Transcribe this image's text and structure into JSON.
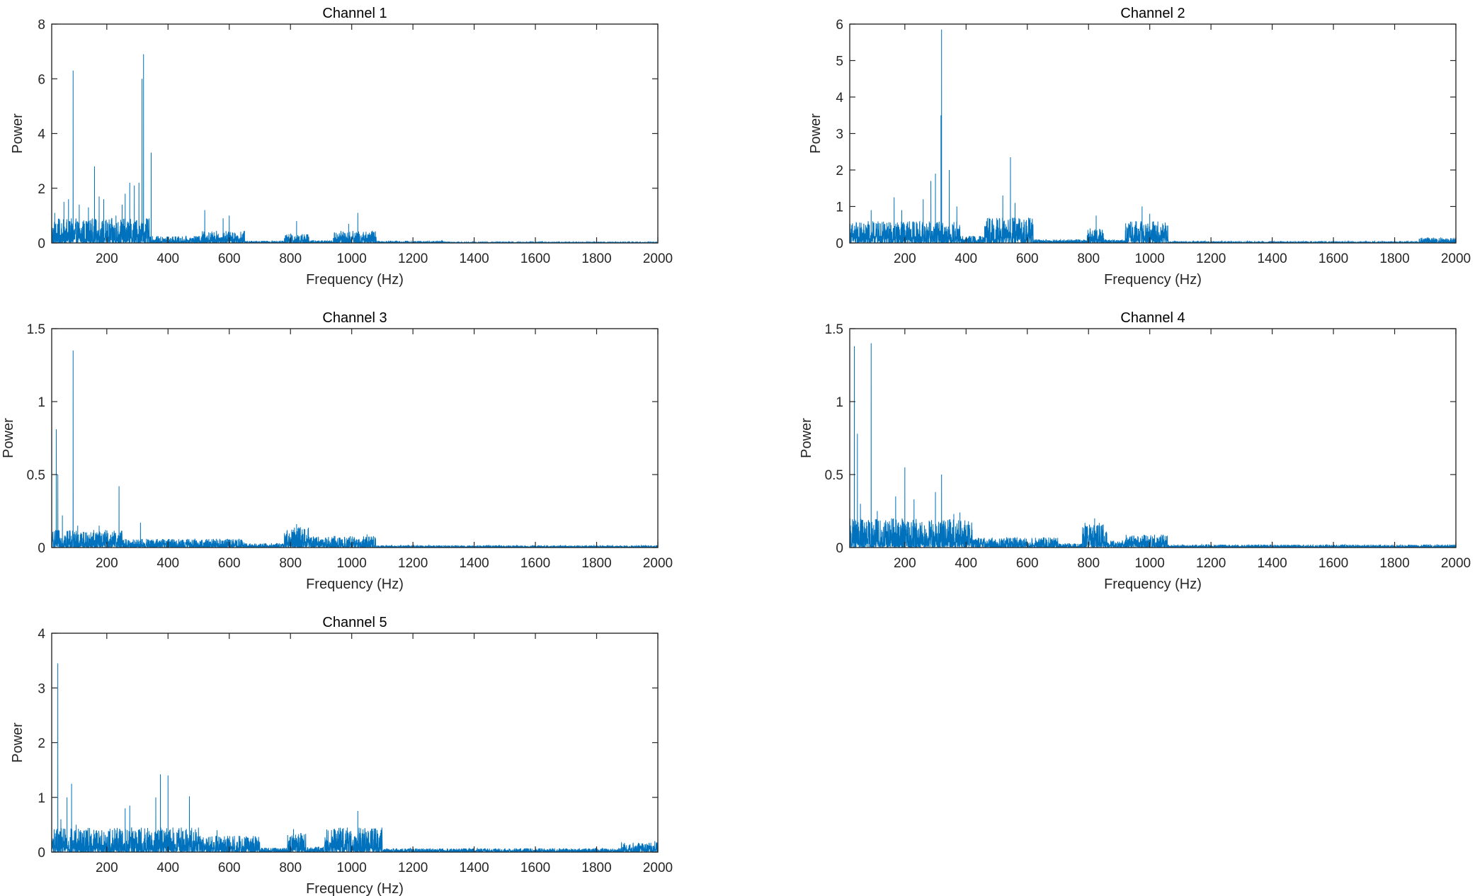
{
  "chart_data": [
    {
      "type": "line",
      "title": "Channel 1",
      "xlabel": "Frequency (Hz)",
      "ylabel": "Power",
      "xlim": [
        20,
        2000
      ],
      "ylim": [
        0,
        8
      ],
      "xticks": [
        200,
        400,
        600,
        800,
        1000,
        1200,
        1400,
        1600,
        1800,
        2000
      ],
      "yticks": [
        0,
        2,
        4,
        6,
        8
      ],
      "color": "#0072BD",
      "noise_regions": [
        {
          "from": 20,
          "to": 340,
          "level": 0.9
        },
        {
          "from": 340,
          "to": 500,
          "level": 0.25
        },
        {
          "from": 500,
          "to": 650,
          "level": 0.45
        },
        {
          "from": 650,
          "to": 780,
          "level": 0.08
        },
        {
          "from": 780,
          "to": 860,
          "level": 0.35
        },
        {
          "from": 860,
          "to": 940,
          "level": 0.1
        },
        {
          "from": 940,
          "to": 1080,
          "level": 0.45
        },
        {
          "from": 1080,
          "to": 1300,
          "level": 0.08
        },
        {
          "from": 1300,
          "to": 2000,
          "level": 0.04
        }
      ],
      "peaks": [
        [
          30,
          1.1
        ],
        [
          60,
          1.5
        ],
        [
          75,
          1.6
        ],
        [
          90,
          6.3
        ],
        [
          110,
          1.4
        ],
        [
          140,
          1.3
        ],
        [
          160,
          2.8
        ],
        [
          175,
          1.7
        ],
        [
          190,
          1.6
        ],
        [
          230,
          1.0
        ],
        [
          250,
          1.4
        ],
        [
          260,
          1.8
        ],
        [
          275,
          2.2
        ],
        [
          290,
          2.1
        ],
        [
          305,
          2.2
        ],
        [
          315,
          6.0
        ],
        [
          320,
          6.9
        ],
        [
          345,
          3.3
        ],
        [
          520,
          1.2
        ],
        [
          580,
          0.9
        ],
        [
          600,
          1.0
        ],
        [
          820,
          0.8
        ],
        [
          990,
          0.7
        ],
        [
          1020,
          1.1
        ]
      ]
    },
    {
      "type": "line",
      "title": "Channel 2",
      "xlabel": "Frequency (Hz)",
      "ylabel": "Power",
      "xlim": [
        20,
        2000
      ],
      "ylim": [
        0,
        6
      ],
      "xticks": [
        200,
        400,
        600,
        800,
        1000,
        1200,
        1400,
        1600,
        1800,
        2000
      ],
      "yticks": [
        0,
        1,
        2,
        3,
        4,
        5,
        6
      ],
      "color": "#0072BD",
      "noise_regions": [
        {
          "from": 20,
          "to": 380,
          "level": 0.6
        },
        {
          "from": 380,
          "to": 460,
          "level": 0.2
        },
        {
          "from": 460,
          "to": 620,
          "level": 0.7
        },
        {
          "from": 620,
          "to": 790,
          "level": 0.1
        },
        {
          "from": 790,
          "to": 850,
          "level": 0.4
        },
        {
          "from": 850,
          "to": 920,
          "level": 0.1
        },
        {
          "from": 920,
          "to": 1060,
          "level": 0.6
        },
        {
          "from": 1060,
          "to": 1880,
          "level": 0.05
        },
        {
          "from": 1880,
          "to": 2000,
          "level": 0.15
        }
      ],
      "peaks": [
        [
          90,
          0.9
        ],
        [
          165,
          1.25
        ],
        [
          190,
          0.9
        ],
        [
          260,
          1.2
        ],
        [
          285,
          1.7
        ],
        [
          300,
          1.9
        ],
        [
          318,
          3.5
        ],
        [
          320,
          5.85
        ],
        [
          345,
          2.0
        ],
        [
          370,
          1.0
        ],
        [
          520,
          1.3
        ],
        [
          545,
          2.35
        ],
        [
          560,
          1.1
        ],
        [
          825,
          0.75
        ],
        [
          975,
          1.0
        ],
        [
          1000,
          0.8
        ],
        [
          1950,
          0.15
        ]
      ]
    },
    {
      "type": "line",
      "title": "Channel 3",
      "xlabel": "Frequency (Hz)",
      "ylabel": "Power",
      "xlim": [
        20,
        2000
      ],
      "ylim": [
        0,
        1.5
      ],
      "xticks": [
        200,
        400,
        600,
        800,
        1000,
        1200,
        1400,
        1600,
        1800,
        2000
      ],
      "yticks": [
        0,
        0.5,
        1,
        1.5
      ],
      "color": "#0072BD",
      "noise_regions": [
        {
          "from": 20,
          "to": 250,
          "level": 0.12
        },
        {
          "from": 250,
          "to": 650,
          "level": 0.06
        },
        {
          "from": 650,
          "to": 780,
          "level": 0.03
        },
        {
          "from": 780,
          "to": 860,
          "level": 0.14
        },
        {
          "from": 860,
          "to": 1080,
          "level": 0.08
        },
        {
          "from": 1080,
          "to": 2000,
          "level": 0.015
        }
      ],
      "peaks": [
        [
          35,
          0.81
        ],
        [
          40,
          0.5
        ],
        [
          55,
          0.22
        ],
        [
          90,
          1.35
        ],
        [
          105,
          0.15
        ],
        [
          175,
          0.15
        ],
        [
          240,
          0.42
        ],
        [
          310,
          0.17
        ],
        [
          820,
          0.16
        ],
        [
          1050,
          0.09
        ]
      ]
    },
    {
      "type": "line",
      "title": "Channel 4",
      "xlabel": "Frequency (Hz)",
      "ylabel": "Power",
      "xlim": [
        20,
        2000
      ],
      "ylim": [
        0,
        1.5
      ],
      "xticks": [
        200,
        400,
        600,
        800,
        1000,
        1200,
        1400,
        1600,
        1800,
        2000
      ],
      "yticks": [
        0,
        0.5,
        1,
        1.5
      ],
      "color": "#0072BD",
      "noise_regions": [
        {
          "from": 20,
          "to": 420,
          "level": 0.2
        },
        {
          "from": 420,
          "to": 700,
          "level": 0.07
        },
        {
          "from": 700,
          "to": 780,
          "level": 0.03
        },
        {
          "from": 780,
          "to": 860,
          "level": 0.17
        },
        {
          "from": 860,
          "to": 920,
          "level": 0.05
        },
        {
          "from": 920,
          "to": 1060,
          "level": 0.09
        },
        {
          "from": 1060,
          "to": 2000,
          "level": 0.02
        }
      ],
      "peaks": [
        [
          35,
          1.38
        ],
        [
          45,
          0.78
        ],
        [
          55,
          0.3
        ],
        [
          90,
          1.4
        ],
        [
          110,
          0.25
        ],
        [
          170,
          0.35
        ],
        [
          200,
          0.55
        ],
        [
          230,
          0.33
        ],
        [
          300,
          0.38
        ],
        [
          320,
          0.5
        ],
        [
          360,
          0.23
        ],
        [
          380,
          0.24
        ],
        [
          820,
          0.2
        ],
        [
          1400,
          0.04
        ]
      ]
    },
    {
      "type": "line",
      "title": "Channel 5",
      "xlabel": "Frequency (Hz)",
      "ylabel": "Power",
      "xlim": [
        20,
        2000
      ],
      "ylim": [
        0,
        4
      ],
      "xticks": [
        200,
        400,
        600,
        800,
        1000,
        1200,
        1400,
        1600,
        1800,
        2000
      ],
      "yticks": [
        0,
        1,
        2,
        3,
        4
      ],
      "color": "#0072BD",
      "noise_regions": [
        {
          "from": 20,
          "to": 500,
          "level": 0.45
        },
        {
          "from": 500,
          "to": 700,
          "level": 0.3
        },
        {
          "from": 700,
          "to": 790,
          "level": 0.08
        },
        {
          "from": 790,
          "to": 850,
          "level": 0.35
        },
        {
          "from": 850,
          "to": 910,
          "level": 0.1
        },
        {
          "from": 910,
          "to": 1100,
          "level": 0.45
        },
        {
          "from": 1100,
          "to": 1880,
          "level": 0.07
        },
        {
          "from": 1880,
          "to": 2000,
          "level": 0.18
        }
      ],
      "peaks": [
        [
          40,
          3.45
        ],
        [
          50,
          0.6
        ],
        [
          70,
          1.0
        ],
        [
          85,
          1.25
        ],
        [
          100,
          0.5
        ],
        [
          260,
          0.8
        ],
        [
          275,
          0.85
        ],
        [
          360,
          1.0
        ],
        [
          375,
          1.42
        ],
        [
          400,
          1.4
        ],
        [
          470,
          1.02
        ],
        [
          560,
          0.4
        ],
        [
          810,
          0.42
        ],
        [
          1020,
          0.75
        ],
        [
          1990,
          0.2
        ]
      ]
    }
  ]
}
